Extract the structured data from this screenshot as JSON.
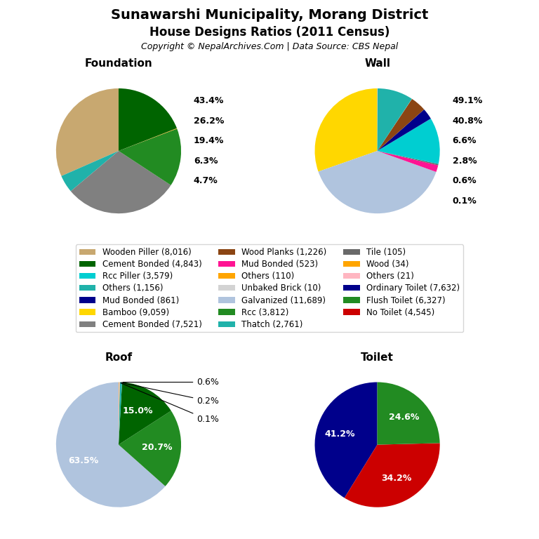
{
  "title": "Sunawarshi Municipality, Morang District",
  "subtitle": "House Designs Ratios (2011 Census)",
  "annotations": [
    "Copyright © NepalArchives.Com | Data Source: CBS Nepal"
  ],
  "legend_entries": [
    {
      "name": "Wooden Piller (8,016)",
      "color": "#C8A870"
    },
    {
      "name": "Cement Bonded (4,843)",
      "color": "#006400"
    },
    {
      "name": "Rcc Piller (3,579)",
      "color": "#00CED1"
    },
    {
      "name": "Others (1,156)",
      "color": "#20B2AA"
    },
    {
      "name": "Mud Bonded (861)",
      "color": "#00008B"
    },
    {
      "name": "Bamboo (9,059)",
      "color": "#FFD700"
    },
    {
      "name": "Cement Bonded (7,521)",
      "color": "#808080"
    },
    {
      "name": "Wood Planks (1,226)",
      "color": "#8B4513"
    },
    {
      "name": "Mud Bonded (523)",
      "color": "#FF1493"
    },
    {
      "name": "Others (110)",
      "color": "#FFA500"
    },
    {
      "name": "Unbaked Brick (10)",
      "color": "#D3D3D3"
    },
    {
      "name": "Galvanized (11,689)",
      "color": "#B0C4DE"
    },
    {
      "name": "Rcc (3,812)",
      "color": "#228B22"
    },
    {
      "name": "Thatch (2,761)",
      "color": "#20B2AA"
    },
    {
      "name": "Tile (105)",
      "color": "#696969"
    },
    {
      "name": "Wood (34)",
      "color": "#FFA500"
    },
    {
      "name": "Others (21)",
      "color": "#FFB6C1"
    },
    {
      "name": "Ordinary Toilet (7,632)",
      "color": "#00008B"
    },
    {
      "name": "Flush Toilet (6,327)",
      "color": "#228B22"
    },
    {
      "name": "No Toilet (4,545)",
      "color": "#CC0000"
    }
  ],
  "chart_data": [
    {
      "type": "pie",
      "title": "Foundation",
      "values": [
        8016,
        1156,
        7521,
        3812,
        34,
        4843
      ],
      "colors": [
        "#C8A870",
        "#20B2AA",
        "#808080",
        "#228B22",
        "#FFA500",
        "#006400"
      ],
      "annotations": [
        "43.4%",
        "26.2%",
        "19.4%",
        "6.3%",
        "4.7%"
      ]
    },
    {
      "type": "pie",
      "title": "Wall",
      "values": [
        9059,
        11689,
        523,
        105,
        3579,
        861,
        1226,
        10,
        2761,
        21
      ],
      "colors": [
        "#FFD700",
        "#B0C4DE",
        "#FF1493",
        "#696969",
        "#00CED1",
        "#00008B",
        "#8B4513",
        "#D3D3D3",
        "#20B2AA",
        "#FFB6C1"
      ],
      "annotations": [
        "49.1%",
        "40.8%",
        "6.6%",
        "2.8%",
        "0.6%",
        "0.1%"
      ]
    },
    {
      "type": "pie",
      "title": "Roof",
      "values": [
        63.5,
        20.7,
        15.0,
        0.6,
        0.2,
        0.1
      ],
      "value_labels": [
        "63.5%",
        "20.7%",
        "15.0%",
        "0.6%",
        "0.2%",
        "0.1%"
      ],
      "data_labels": true,
      "colors": [
        "#B0C4DE",
        "#228B22",
        "#006400",
        "#20B2AA",
        "#FFB6C1",
        "#FFA500"
      ]
    },
    {
      "type": "pie",
      "title": "Toilet",
      "values": [
        41.2,
        34.2,
        24.6
      ],
      "value_labels": [
        "41.2%",
        "34.2%",
        "24.6%"
      ],
      "data_labels": true,
      "colors": [
        "#00008B",
        "#CC0000",
        "#228B22"
      ]
    }
  ]
}
